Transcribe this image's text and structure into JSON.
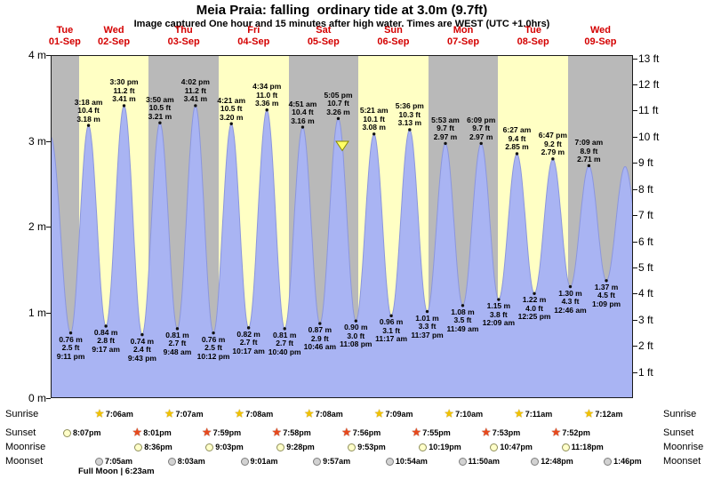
{
  "header": {
    "title": "Meia Praia: falling  ordinary tide at 3.0m (9.7ft)",
    "subtitle": "Image captured One hour and 15 minutes after high water. Times are WEST (UTC +1.0hrs)"
  },
  "chart_data": {
    "type": "area",
    "title": "Meia Praia: falling  ordinary tide at 3.0m (9.7ft)",
    "subtitle": "Image captured One hour and 15 minutes after high water. Times are WEST (UTC +1.0hrs)",
    "grid": false,
    "days": [
      {
        "name": "Tue",
        "date": "01-Sep",
        "t_start": -9.7,
        "t_end": 0,
        "band": "gray"
      },
      {
        "name": "Wed",
        "date": "02-Sep",
        "t_start": 0,
        "t_end": 24,
        "band": "yellow"
      },
      {
        "name": "Thu",
        "date": "03-Sep",
        "t_start": 24,
        "t_end": 48,
        "band": "gray"
      },
      {
        "name": "Fri",
        "date": "04-Sep",
        "t_start": 48,
        "t_end": 72,
        "band": "yellow"
      },
      {
        "name": "Sat",
        "date": "05-Sep",
        "t_start": 72,
        "t_end": 96,
        "band": "gray"
      },
      {
        "name": "Sun",
        "date": "06-Sep",
        "t_start": 96,
        "t_end": 120,
        "band": "yellow"
      },
      {
        "name": "Mon",
        "date": "07-Sep",
        "t_start": 120,
        "t_end": 144,
        "band": "gray"
      },
      {
        "name": "Tue",
        "date": "08-Sep",
        "t_start": 144,
        "t_end": 168,
        "band": "yellow"
      },
      {
        "name": "Wed",
        "date": "09-Sep",
        "t_start": 168,
        "t_end": 190.3,
        "band": "gray"
      }
    ],
    "y_axis_left": {
      "unit": "m",
      "range": [
        0,
        4
      ],
      "ticks": [
        {
          "label": "4 m",
          "m": 4
        },
        {
          "label": "3 m",
          "m": 3
        },
        {
          "label": "2 m",
          "m": 2
        },
        {
          "label": "1 m",
          "m": 1
        },
        {
          "label": "0 m",
          "m": 0
        }
      ]
    },
    "y_axis_right": {
      "unit": "ft",
      "ticks": [
        {
          "label": "13 ft",
          "ft": 13
        },
        {
          "label": "12 ft",
          "ft": 12
        },
        {
          "label": "11 ft",
          "ft": 11
        },
        {
          "label": "10 ft",
          "ft": 10
        },
        {
          "label": "9 ft",
          "ft": 9
        },
        {
          "label": "8 ft",
          "ft": 8
        },
        {
          "label": "7 ft",
          "ft": 7
        },
        {
          "label": "6 ft",
          "ft": 6
        },
        {
          "label": "5 ft",
          "ft": 5
        },
        {
          "label": "4 ft",
          "ft": 4
        },
        {
          "label": "3 ft",
          "ft": 3
        },
        {
          "label": "2 ft",
          "ft": 2
        },
        {
          "label": "1 ft",
          "ft": 1
        }
      ]
    },
    "high_tides": [
      {
        "time": "3:18 am",
        "ft": "10.4 ft",
        "m_label": "3.18 m",
        "t": 3.3,
        "m": 3.18
      },
      {
        "time": "3:30 pm",
        "ft": "11.2 ft",
        "m_label": "3.41 m",
        "t": 15.5,
        "m": 3.41
      },
      {
        "time": "3:50 am",
        "ft": "10.5 ft",
        "m_label": "3.21 m",
        "t": 27.83,
        "m": 3.21
      },
      {
        "time": "4:02 pm",
        "ft": "11.2 ft",
        "m_label": "3.41 m",
        "t": 40.03,
        "m": 3.41
      },
      {
        "time": "4:21 am",
        "ft": "10.5 ft",
        "m_label": "3.20 m",
        "t": 52.35,
        "m": 3.2
      },
      {
        "time": "4:34 pm",
        "ft": "11.0 ft",
        "m_label": "3.36 m",
        "t": 64.57,
        "m": 3.36
      },
      {
        "time": "4:51 am",
        "ft": "10.4 ft",
        "m_label": "3.16 m",
        "t": 76.85,
        "m": 3.16
      },
      {
        "time": "5:05 pm",
        "ft": "10.7 ft",
        "m_label": "3.26 m",
        "t": 89.08,
        "m": 3.26
      },
      {
        "time": "5:21 am",
        "ft": "10.1 ft",
        "m_label": "3.08 m",
        "t": 101.35,
        "m": 3.08
      },
      {
        "time": "5:36 pm",
        "ft": "10.3 ft",
        "m_label": "3.13 m",
        "t": 113.6,
        "m": 3.13
      },
      {
        "time": "5:53 am",
        "ft": "9.7 ft",
        "m_label": "2.97 m",
        "t": 125.88,
        "m": 2.97
      },
      {
        "time": "6:09 pm",
        "ft": "9.7 ft",
        "m_label": "2.97 m",
        "t": 138.15,
        "m": 2.97
      },
      {
        "time": "6:27 am",
        "ft": "9.4 ft",
        "m_label": "2.85 m",
        "t": 150.45,
        "m": 2.85
      },
      {
        "time": "6:47 pm",
        "ft": "9.2 ft",
        "m_label": "2.79 m",
        "t": 162.78,
        "m": 2.79
      },
      {
        "time": "7:09 am",
        "ft": "8.9 ft",
        "m_label": "2.71 m",
        "t": 175.15,
        "m": 2.71
      }
    ],
    "low_tides": [
      {
        "m_label": "0.76 m",
        "ft": "2.5 ft",
        "time": "9:11 pm",
        "t": -2.82,
        "m": 0.76
      },
      {
        "m_label": "0.84 m",
        "ft": "2.8 ft",
        "time": "9:17 am",
        "t": 9.28,
        "m": 0.84
      },
      {
        "m_label": "0.74 m",
        "ft": "2.4 ft",
        "time": "9:43 pm",
        "t": 21.72,
        "m": 0.74
      },
      {
        "m_label": "0.81 m",
        "ft": "2.7 ft",
        "time": "9:48 am",
        "t": 33.8,
        "m": 0.81
      },
      {
        "m_label": "0.76 m",
        "ft": "2.5 ft",
        "time": "10:12 pm",
        "t": 46.2,
        "m": 0.76
      },
      {
        "m_label": "0.82 m",
        "ft": "2.7 ft",
        "time": "10:17 am",
        "t": 58.28,
        "m": 0.82
      },
      {
        "m_label": "0.81 m",
        "ft": "2.7 ft",
        "time": "10:40 pm",
        "t": 70.67,
        "m": 0.81
      },
      {
        "m_label": "0.87 m",
        "ft": "2.9 ft",
        "time": "10:46 am",
        "t": 82.77,
        "m": 0.87
      },
      {
        "m_label": "0.90 m",
        "ft": "3.0 ft",
        "time": "11:08 pm",
        "t": 95.13,
        "m": 0.9
      },
      {
        "m_label": "0.96 m",
        "ft": "3.1 ft",
        "time": "11:17 am",
        "t": 107.28,
        "m": 0.96
      },
      {
        "m_label": "1.01 m",
        "ft": "3.3 ft",
        "time": "11:37 pm",
        "t": 119.62,
        "m": 1.01
      },
      {
        "m_label": "1.08 m",
        "ft": "3.5 ft",
        "time": "11:49 am",
        "t": 131.82,
        "m": 1.08
      },
      {
        "m_label": "1.15 m",
        "ft": "3.8 ft",
        "time": "12:09 am",
        "t": 144.15,
        "m": 1.15
      },
      {
        "m_label": "1.22 m",
        "ft": "4.0 ft",
        "time": "12:25 pm",
        "t": 156.42,
        "m": 1.22
      },
      {
        "m_label": "1.30 m",
        "ft": "4.3 ft",
        "time": "12:46 am",
        "t": 168.77,
        "m": 1.3
      },
      {
        "m_label": "1.37 m",
        "ft": "4.5 ft",
        "time": "1:09 pm",
        "t": 181.15,
        "m": 1.37
      }
    ],
    "curve_edge_points": [
      {
        "t": -9.7,
        "m": 3.05
      },
      {
        "t": 187.6,
        "m": 2.7
      },
      {
        "t": 193.9,
        "m": 1.45
      }
    ],
    "current_marker": {
      "t": 90.45,
      "m": 3.0
    }
  },
  "astro": {
    "rows": [
      {
        "name": "sunrise",
        "label": "Sunrise",
        "entries": [
          {
            "icon": "star-yellow",
            "time": "7:06am",
            "t": 7.1
          },
          {
            "icon": "star-yellow",
            "time": "7:07am",
            "t": 31.12
          },
          {
            "icon": "star-yellow",
            "time": "7:08am",
            "t": 55.13
          },
          {
            "icon": "star-yellow",
            "time": "7:08am",
            "t": 79.13
          },
          {
            "icon": "star-yellow",
            "time": "7:09am",
            "t": 103.15
          },
          {
            "icon": "star-yellow",
            "time": "7:10am",
            "t": 127.17
          },
          {
            "icon": "star-yellow",
            "time": "7:11am",
            "t": 151.18
          },
          {
            "icon": "star-yellow",
            "time": "7:12am",
            "t": 175.2
          }
        ]
      },
      {
        "name": "sunset",
        "label": "Sunset",
        "entries": [
          {
            "icon": "moon-yellow",
            "time": "8:07pm",
            "t": -3.88
          },
          {
            "icon": "star-red",
            "time": "8:01pm",
            "t": 20.02
          },
          {
            "icon": "star-red",
            "time": "7:59pm",
            "t": 43.98
          },
          {
            "icon": "star-red",
            "time": "7:58pm",
            "t": 67.97
          },
          {
            "icon": "star-red",
            "time": "7:56pm",
            "t": 91.93
          },
          {
            "icon": "star-red",
            "time": "7:55pm",
            "t": 115.92
          },
          {
            "icon": "star-red",
            "time": "7:53pm",
            "t": 139.88
          },
          {
            "icon": "star-red",
            "time": "7:52pm",
            "t": 163.87
          }
        ]
      },
      {
        "name": "moonrise",
        "label": "Moonrise",
        "entries": [
          {
            "icon": "moon-yellow",
            "time": "8:36pm",
            "t": 20.6
          },
          {
            "icon": "moon-yellow",
            "time": "9:03pm",
            "t": 45.05
          },
          {
            "icon": "moon-yellow",
            "time": "9:28pm",
            "t": 69.47
          },
          {
            "icon": "moon-yellow",
            "time": "9:53pm",
            "t": 93.88
          },
          {
            "icon": "moon-yellow",
            "time": "10:19pm",
            "t": 118.32
          },
          {
            "icon": "moon-yellow",
            "time": "10:47pm",
            "t": 142.78
          },
          {
            "icon": "moon-yellow",
            "time": "11:18pm",
            "t": 167.3
          }
        ]
      },
      {
        "name": "moonset",
        "label": "Moonset",
        "entries": [
          {
            "icon": "moon-gray",
            "time": "7:05am",
            "t": 7.08
          },
          {
            "icon": "moon-gray",
            "time": "8:03am",
            "t": 32.05
          },
          {
            "icon": "moon-gray",
            "time": "9:01am",
            "t": 57.02
          },
          {
            "icon": "moon-gray",
            "time": "9:57am",
            "t": 81.95
          },
          {
            "icon": "moon-gray",
            "time": "10:54am",
            "t": 106.9
          },
          {
            "icon": "moon-gray",
            "time": "11:50am",
            "t": 131.83
          },
          {
            "icon": "moon-gray",
            "time": "12:48pm",
            "t": 156.8
          },
          {
            "icon": "moon-gray",
            "time": "1:46pm",
            "t": 181.77
          }
        ]
      }
    ]
  },
  "footnote": "Full Moon | 6:23am",
  "colors": {
    "band_yellow": "#ffffc4",
    "band_gray": "#b9b9b9",
    "tide_fill": "#a9b4f3",
    "tide_stroke": "#8b96dd",
    "day_label_red": "#d40000",
    "marker_yellow": "#ffff66"
  }
}
